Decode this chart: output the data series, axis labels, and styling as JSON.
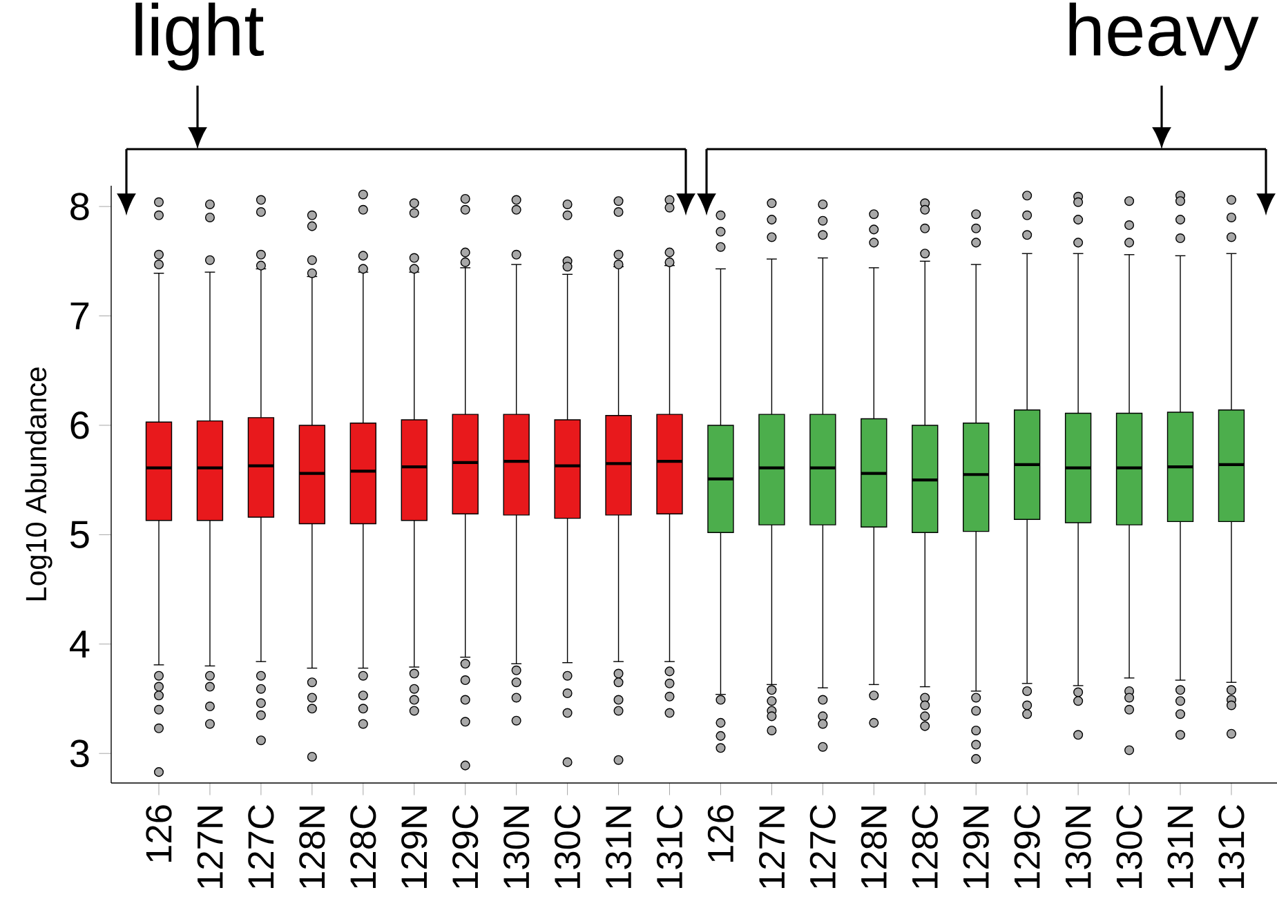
{
  "chart_data": {
    "type": "box",
    "ylabel": "Log10 Abundance",
    "annotations": [
      "light",
      "heavy"
    ],
    "categories": [
      "126",
      "127N",
      "127C",
      "128N",
      "128C",
      "129N",
      "129C",
      "130N",
      "130C",
      "131N",
      "131C",
      "126",
      "127N",
      "127C",
      "128N",
      "128C",
      "129N",
      "129C",
      "130N",
      "130C",
      "131N",
      "131C"
    ],
    "colors": [
      "#e8191c",
      "#e8191c",
      "#e8191c",
      "#e8191c",
      "#e8191c",
      "#e8191c",
      "#e8191c",
      "#e8191c",
      "#e8191c",
      "#e8191c",
      "#e8191c",
      "#4cae4c",
      "#4cae4c",
      "#4cae4c",
      "#4cae4c",
      "#4cae4c",
      "#4cae4c",
      "#4cae4c",
      "#4cae4c",
      "#4cae4c",
      "#4cae4c",
      "#4cae4c"
    ],
    "boxes": [
      {
        "low": 3.81,
        "q1": 5.13,
        "median": 5.61,
        "q3": 6.03,
        "high": 7.39,
        "outliers": [
          8.04,
          7.92,
          7.56,
          7.47,
          3.71,
          3.61,
          3.53,
          3.4,
          3.23,
          2.83
        ]
      },
      {
        "low": 3.8,
        "q1": 5.13,
        "median": 5.61,
        "q3": 6.04,
        "high": 7.4,
        "outliers": [
          8.02,
          7.9,
          7.51,
          3.71,
          3.61,
          3.43,
          3.27
        ]
      },
      {
        "low": 3.84,
        "q1": 5.16,
        "median": 5.63,
        "q3": 6.07,
        "high": 7.43,
        "outliers": [
          8.06,
          7.95,
          7.56,
          7.46,
          3.71,
          3.59,
          3.46,
          3.35,
          3.12
        ]
      },
      {
        "low": 3.78,
        "q1": 5.1,
        "median": 5.56,
        "q3": 6.0,
        "high": 7.36,
        "outliers": [
          7.92,
          7.82,
          7.51,
          7.39,
          3.65,
          3.51,
          3.41,
          2.97
        ]
      },
      {
        "low": 3.78,
        "q1": 5.1,
        "median": 5.58,
        "q3": 6.02,
        "high": 7.4,
        "outliers": [
          8.11,
          7.97,
          7.55,
          7.43,
          3.71,
          3.53,
          3.41,
          3.27
        ]
      },
      {
        "low": 3.79,
        "q1": 5.13,
        "median": 5.62,
        "q3": 6.05,
        "high": 7.4,
        "outliers": [
          8.03,
          7.94,
          7.53,
          7.43,
          3.73,
          3.59,
          3.49,
          3.39
        ]
      },
      {
        "low": 3.88,
        "q1": 5.19,
        "median": 5.66,
        "q3": 6.1,
        "high": 7.44,
        "outliers": [
          8.07,
          7.97,
          7.58,
          7.49,
          3.82,
          3.67,
          3.49,
          3.29,
          2.89
        ]
      },
      {
        "low": 3.82,
        "q1": 5.18,
        "median": 5.67,
        "q3": 6.1,
        "high": 7.47,
        "outliers": [
          8.06,
          7.97,
          7.56,
          3.76,
          3.65,
          3.51,
          3.3
        ]
      },
      {
        "low": 3.83,
        "q1": 5.15,
        "median": 5.63,
        "q3": 6.05,
        "high": 7.38,
        "outliers": [
          8.02,
          7.92,
          7.5,
          7.45,
          3.71,
          3.55,
          3.37,
          2.92
        ]
      },
      {
        "low": 3.84,
        "q1": 5.18,
        "median": 5.65,
        "q3": 6.09,
        "high": 7.45,
        "outliers": [
          8.05,
          7.95,
          7.56,
          7.47,
          3.73,
          3.65,
          3.49,
          3.39,
          2.94
        ]
      },
      {
        "low": 3.84,
        "q1": 5.19,
        "median": 5.67,
        "q3": 6.1,
        "high": 7.46,
        "outliers": [
          8.06,
          7.99,
          7.58,
          7.49,
          3.75,
          3.64,
          3.52,
          3.37
        ]
      },
      {
        "low": 3.54,
        "q1": 5.02,
        "median": 5.51,
        "q3": 6.0,
        "high": 7.43,
        "outliers": [
          7.92,
          7.77,
          7.63,
          3.49,
          3.28,
          3.16,
          3.05
        ]
      },
      {
        "low": 3.63,
        "q1": 5.09,
        "median": 5.61,
        "q3": 6.1,
        "high": 7.52,
        "outliers": [
          8.03,
          7.88,
          7.72,
          3.58,
          3.48,
          3.39,
          3.34,
          3.21
        ]
      },
      {
        "low": 3.6,
        "q1": 5.09,
        "median": 5.61,
        "q3": 6.1,
        "high": 7.53,
        "outliers": [
          8.02,
          7.87,
          7.74,
          3.49,
          3.34,
          3.27,
          3.06
        ]
      },
      {
        "low": 3.63,
        "q1": 5.07,
        "median": 5.56,
        "q3": 6.06,
        "high": 7.44,
        "outliers": [
          7.93,
          7.79,
          7.67,
          3.53,
          3.28
        ]
      },
      {
        "low": 3.61,
        "q1": 5.02,
        "median": 5.5,
        "q3": 6.0,
        "high": 7.5,
        "outliers": [
          8.03,
          7.97,
          7.8,
          7.57,
          3.51,
          3.44,
          3.34,
          3.25
        ]
      },
      {
        "low": 3.57,
        "q1": 5.03,
        "median": 5.55,
        "q3": 6.02,
        "high": 7.47,
        "outliers": [
          7.93,
          7.8,
          7.67,
          3.51,
          3.39,
          3.21,
          3.08,
          2.95
        ]
      },
      {
        "low": 3.64,
        "q1": 5.14,
        "median": 5.64,
        "q3": 6.14,
        "high": 7.57,
        "outliers": [
          8.1,
          7.92,
          7.74,
          3.57,
          3.44,
          3.36
        ]
      },
      {
        "low": 3.62,
        "q1": 5.11,
        "median": 5.61,
        "q3": 6.11,
        "high": 7.57,
        "outliers": [
          8.09,
          8.04,
          7.88,
          7.67,
          3.56,
          3.48,
          3.17
        ]
      },
      {
        "low": 3.69,
        "q1": 5.09,
        "median": 5.61,
        "q3": 6.11,
        "high": 7.56,
        "outliers": [
          8.05,
          7.83,
          7.67,
          3.57,
          3.51,
          3.4,
          3.03
        ]
      },
      {
        "low": 3.67,
        "q1": 5.12,
        "median": 5.62,
        "q3": 6.12,
        "high": 7.55,
        "outliers": [
          8.1,
          8.05,
          7.88,
          7.71,
          3.58,
          3.48,
          3.36,
          3.17
        ]
      },
      {
        "low": 3.65,
        "q1": 5.12,
        "median": 5.64,
        "q3": 6.14,
        "high": 7.57,
        "outliers": [
          8.06,
          7.9,
          7.72,
          3.58,
          3.49,
          3.44,
          3.18
        ]
      }
    ],
    "ylim": [
      2.73,
      8.19
    ],
    "yticks": [
      3,
      4,
      5,
      6,
      7,
      8
    ]
  }
}
